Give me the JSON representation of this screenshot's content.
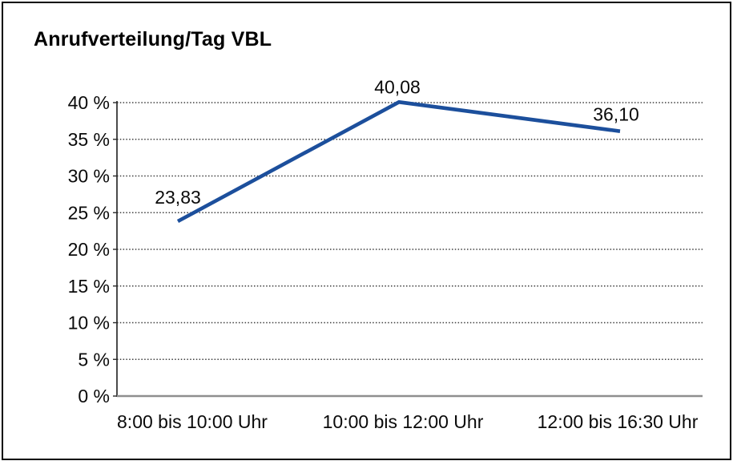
{
  "window": {
    "background": "#ffffff",
    "border_color": "#000000"
  },
  "header": {
    "title": "Anrufverteilung/Tag VBL"
  },
  "chart_data": {
    "type": "line",
    "title": "Anrufverteilung/Tag VBL",
    "categories": [
      "8:00 bis 10:00 Uhr",
      "10:00 bis 12:00 Uhr",
      "12:00 bis 16:30 Uhr"
    ],
    "series": [
      {
        "name": "Anrufverteilung/Tag VBL",
        "values": [
          23.83,
          40.08,
          36.1
        ]
      }
    ],
    "value_labels": [
      "23,83",
      "40,08",
      "36,10"
    ],
    "xlabel": "",
    "ylabel": "",
    "ylim": [
      0,
      40
    ],
    "ytick_step": 5,
    "ytick_labels": [
      "0 %",
      "5 %",
      "10 %",
      "15 %",
      "20 %",
      "25 %",
      "30 %",
      "35 %",
      "40 %"
    ],
    "grid": "dotted-horizontal",
    "legend": "none",
    "colors": {
      "line": "#1c4f9c",
      "grid": "#3d3d3d",
      "axis": "#2b2b2b",
      "baseline": "#8f8f8f",
      "text": "#0a0a0a"
    }
  }
}
